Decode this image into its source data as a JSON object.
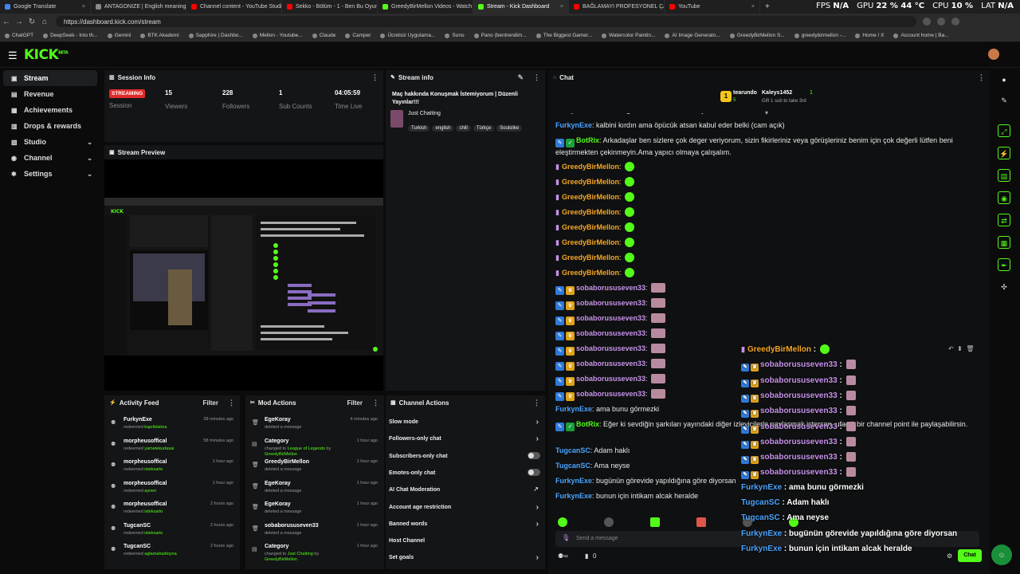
{
  "browser": {
    "tabs": [
      {
        "label": "Google Translate",
        "color": "#4285f4"
      },
      {
        "label": "ANTAGONIZE | English meaning",
        "color": "#888888"
      },
      {
        "label": "Channel content - YouTube Studio",
        "color": "#ff0000"
      },
      {
        "label": "Sekko - Bölüm - 1 - Ben Bu Oyun",
        "color": "#ff0000"
      },
      {
        "label": "GreedyBirMellon Videos - Watch",
        "color": "#53fc18"
      },
      {
        "label": "Stream - Kick Dashboard",
        "color": "#53fc18"
      },
      {
        "label": "BAĞLAMAYI PROFESYONEL ÇALM",
        "color": "#ff0000"
      },
      {
        "label": "YouTube",
        "color": "#ff0000"
      }
    ],
    "url": "https://dashboard.kick.com/stream",
    "bookmarks": [
      "ChatGPT",
      "DeepSeek - Into th...",
      "Gemini",
      "BTK Akademi",
      "Sapphire | Dashbo...",
      "Mellon - Youtube...",
      "Claude",
      "Camper",
      "Ücretsiz Uygulama...",
      "Suno",
      "Pano (bentrendim...",
      "The Biggest Gamer...",
      "Watercolor Paintin...",
      "AI Image Generato...",
      "GreedyBirMellon S...",
      "greedybirmellon -...",
      "Home / X",
      "Account home | Ba..."
    ],
    "sysmon": {
      "fps_label": "FPS",
      "fps_val": "N/A",
      "gpu_label": "GPU",
      "gpu_val": "22 % 44 °C",
      "cpu_label": "CPU",
      "cpu_val": "10 %",
      "lat_label": "LAT",
      "lat_val": "N/A"
    }
  },
  "app": {
    "logo": "KICK",
    "logo_sup": "BETA"
  },
  "sidebar": [
    {
      "label": "Stream",
      "icon": "video-icon",
      "glyph": "▣",
      "chev": ""
    },
    {
      "label": "Revenue",
      "icon": "revenue-icon",
      "glyph": "▤",
      "chev": ""
    },
    {
      "label": "Achievements",
      "icon": "trophy-icon",
      "glyph": "▦",
      "chev": ""
    },
    {
      "label": "Drops & rewards",
      "icon": "gift-icon",
      "glyph": "▥",
      "chev": ""
    },
    {
      "label": "Studio",
      "icon": "studio-icon",
      "glyph": "▧",
      "chev": "⌄"
    },
    {
      "label": "Channel",
      "icon": "channel-icon",
      "glyph": "◉",
      "chev": "⌄"
    },
    {
      "label": "Settings",
      "icon": "gear-icon",
      "glyph": "✱",
      "chev": "⌄"
    }
  ],
  "session": {
    "title": "Session Info",
    "badge": "STREAMING",
    "badge_label": "Session",
    "viewers": "15",
    "viewers_label": "Viewers",
    "followers": "228",
    "followers_label": "Followers",
    "subs": "1",
    "subs_label": "Sub Counts",
    "time": "04:05:59",
    "time_label": "Time Live"
  },
  "preview": {
    "title": "Stream Preview"
  },
  "stream_info": {
    "title": "Stream info",
    "stream_title": "Maç hakkında Konuşmak İstemiyorum | Düzenli Yayınlar!!!",
    "category": "Just Chatting",
    "tags": [
      "Turkish",
      "english",
      "chill",
      "Türkçe",
      "Soulslike"
    ]
  },
  "activity": {
    "title": "Activity Feed",
    "filter": "Filter",
    "items": [
      {
        "name": "FurkynExe",
        "verb": "redeemed",
        "item": "kapıtklatma",
        "time": "28 minutes ago"
      },
      {
        "name": "morpheusoffical",
        "verb": "redeemed",
        "item": "yametekudasai",
        "time": "58 minutes ago"
      },
      {
        "name": "morpheusoffical",
        "verb": "redeemed",
        "item": "isteksarkı",
        "time": "1 hour ago"
      },
      {
        "name": "morpheusoffical",
        "verb": "redeemed",
        "item": "aynen",
        "time": "1 hour ago"
      },
      {
        "name": "morpheusoffical",
        "verb": "redeemed",
        "item": "isteksarkı",
        "time": "2 hours ago"
      },
      {
        "name": "TugcanSC",
        "verb": "redeemed",
        "item": "isteksarkı",
        "time": "2 hours ago"
      },
      {
        "name": "TugcanSC",
        "verb": "redeemed",
        "item": "aglamahadioyna",
        "time": "2 hours ago"
      }
    ]
  },
  "mod": {
    "title": "Mod Actions",
    "filter": "Filter",
    "items": [
      {
        "name": "EgeKoray",
        "pre": "",
        "desc": "deleted a message",
        "mid": "",
        "by": "",
        "time": "4 minutes ago"
      },
      {
        "name": "Category",
        "pre": "changed to",
        "desc": "League of Legends",
        "mid": "by",
        "by": "GreedyBirMellon",
        "time": "1 hour ago"
      },
      {
        "name": "GreedyBirMellon",
        "pre": "",
        "desc": "deleted a message",
        "mid": "",
        "by": "",
        "time": "1 hour ago"
      },
      {
        "name": "EgeKoray",
        "pre": "",
        "desc": "deleted a message",
        "mid": "",
        "by": "",
        "time": "1 hour ago"
      },
      {
        "name": "EgeKoray",
        "pre": "",
        "desc": "deleted a message",
        "mid": "",
        "by": "",
        "time": "1 hour ago"
      },
      {
        "name": "sobaborususeven33",
        "pre": "",
        "desc": "deleted a message",
        "mid": "",
        "by": "",
        "time": "1 hour ago"
      },
      {
        "name": "Category",
        "pre": "changed to",
        "desc": "Just Chatting",
        "mid": "by",
        "by": "GreedyBirMellon",
        "time": "1 hour ago"
      }
    ]
  },
  "channel_actions": {
    "title": "Channel Actions",
    "items": [
      {
        "label": "Slow mode",
        "kind": "chev"
      },
      {
        "label": "Followers-only chat",
        "kind": "chev"
      },
      {
        "label": "Subscribers-only chat",
        "kind": "toggle"
      },
      {
        "label": "Emotes-only chat",
        "kind": "toggle"
      },
      {
        "label": "AI Chat Moderation",
        "kind": "ext"
      },
      {
        "label": "Account age restriction",
        "kind": "chev"
      },
      {
        "label": "Banned words",
        "kind": "chev"
      },
      {
        "label": "Host Channel",
        "kind": "none"
      },
      {
        "label": "Set goals",
        "kind": "chev"
      }
    ]
  },
  "chat": {
    "title": "Chat",
    "pinned": {
      "user1": "tearundo",
      "count1": "1",
      "user2": "Kaleys1452",
      "count2": "1",
      "sub_count": "5",
      "gift": "Gift 1 sub to take 3rd"
    },
    "messages": [
      {
        "user": "FurkynExe",
        "color": "#4aa3ff",
        "text": "Adam ne güzel tatil tatil anı anlatıyordu",
        "badges": "",
        "emote": ""
      },
      {
        "user": "FurkynExe",
        "color": "#4aa3ff",
        "text": "kalbini kırdın ama öpücük atsan kabul eder belki (cam açık)",
        "badges": "",
        "emote": ""
      },
      {
        "user": "BotRix",
        "color": "#53fc18",
        "text": "Arkadaşlar ben sizlere çok deger veriyorum, sizin fikirleriniz veya görüşleriniz benim için çok değerli lütfen beni eleştirmekten çekinmeyin.Ama yapıcı olmaya çalışalım.",
        "badges": "bot",
        "emote": ""
      },
      {
        "user": "GreedyBirMellon",
        "color": "#f5a623",
        "text": "",
        "badges": "mic",
        "emote": "green"
      },
      {
        "user": "GreedyBirMellon",
        "color": "#f5a623",
        "text": "",
        "badges": "mic",
        "emote": "green"
      },
      {
        "user": "GreedyBirMellon",
        "color": "#f5a623",
        "text": "",
        "badges": "mic",
        "emote": "green"
      },
      {
        "user": "GreedyBirMellon",
        "color": "#f5a623",
        "text": "",
        "badges": "mic",
        "emote": "green"
      },
      {
        "user": "GreedyBirMellon",
        "color": "#f5a623",
        "text": "",
        "badges": "mic",
        "emote": "green"
      },
      {
        "user": "GreedyBirMellon",
        "color": "#f5a623",
        "text": "",
        "badges": "mic",
        "emote": "green"
      },
      {
        "user": "GreedyBirMellon",
        "color": "#f5a623",
        "text": "",
        "badges": "mic",
        "emote": "green"
      },
      {
        "user": "GreedyBirMellon",
        "color": "#f5a623",
        "text": "",
        "badges": "mic",
        "emote": "green"
      },
      {
        "user": "sobaborususeven33",
        "color": "#c792ea",
        "text": "",
        "badges": "subs",
        "emote": "pink"
      },
      {
        "user": "sobaborususeven33",
        "color": "#c792ea",
        "text": "",
        "badges": "subs",
        "emote": "pink"
      },
      {
        "user": "sobaborususeven33",
        "color": "#c792ea",
        "text": "",
        "badges": "subs",
        "emote": "pink"
      },
      {
        "user": "sobaborususeven33",
        "color": "#c792ea",
        "text": "",
        "badges": "subs",
        "emote": "pink"
      },
      {
        "user": "sobaborususeven33",
        "color": "#c792ea",
        "text": "",
        "badges": "subs",
        "emote": "pink"
      },
      {
        "user": "sobaborususeven33",
        "color": "#c792ea",
        "text": "",
        "badges": "subs",
        "emote": "pink"
      },
      {
        "user": "sobaborususeven33",
        "color": "#c792ea",
        "text": "",
        "badges": "subs",
        "emote": "pink"
      },
      {
        "user": "sobaborususeven33",
        "color": "#c792ea",
        "text": "",
        "badges": "subs",
        "emote": "pink"
      },
      {
        "user": "FurkynExe",
        "color": "#4aa3ff",
        "text": "ama bunu görmezki",
        "badges": "",
        "emote": ""
      },
      {
        "user": "BotRix",
        "color": "#53fc18",
        "text": "Eğer ki sevdiğin şarkıları yayındaki diğer izleyicilerle paylaşmak istersen, ufacık bir channel point ile paylaşabilirsin.",
        "badges": "bot",
        "emote": ""
      },
      {
        "user": "TugcanSC",
        "color": "#4aa3ff",
        "text": "Adam haklı",
        "badges": "",
        "emote": ""
      },
      {
        "user": "TugcanSC",
        "color": "#4aa3ff",
        "text": "Ama neyse",
        "badges": "",
        "emote": ""
      },
      {
        "user": "FurkynExe",
        "color": "#4aa3ff",
        "text": "bugünün görevide yapıldığına göre diyorsan",
        "badges": "",
        "emote": ""
      },
      {
        "user": "FurkynExe",
        "color": "#4aa3ff",
        "text": "bunun için intikam alcak heralde",
        "badges": "",
        "emote": ""
      }
    ],
    "input_placeholder": "Send a message",
    "points": "0",
    "send_label": "Chat"
  },
  "overlay": [
    {
      "user": "GreedyBirMellon",
      "color": "#f5a623",
      "text": "",
      "badges": "mic",
      "emote": "green"
    },
    {
      "user": "sobaborususeven33",
      "color": "#c792ea",
      "text": "",
      "badges": "subs",
      "emote": "pink"
    },
    {
      "user": "sobaborususeven33",
      "color": "#c792ea",
      "text": "",
      "badges": "subs",
      "emote": "pink"
    },
    {
      "user": "sobaborususeven33",
      "color": "#c792ea",
      "text": "",
      "badges": "subs",
      "emote": "pink"
    },
    {
      "user": "sobaborususeven33",
      "color": "#c792ea",
      "text": "",
      "badges": "subs",
      "emote": "pink"
    },
    {
      "user": "sobaborususeven33",
      "color": "#c792ea",
      "text": "",
      "badges": "subs",
      "emote": "pink"
    },
    {
      "user": "sobaborususeven33",
      "color": "#c792ea",
      "text": "",
      "badges": "subs",
      "emote": "pink"
    },
    {
      "user": "sobaborususeven33",
      "color": "#c792ea",
      "text": "",
      "badges": "subs",
      "emote": "pink"
    },
    {
      "user": "sobaborususeven33",
      "color": "#c792ea",
      "text": "",
      "badges": "subs",
      "emote": "pink"
    },
    {
      "user": "FurkynExe",
      "color": "#4aa3ff",
      "text": "ama bunu görmezki",
      "badges": "",
      "emote": ""
    },
    {
      "user": "TugcanSC",
      "color": "#4aa3ff",
      "text": "Adam haklı",
      "badges": "",
      "emote": ""
    },
    {
      "user": "TugcanSC",
      "color": "#4aa3ff",
      "text": "Ama neyse",
      "badges": "",
      "emote": ""
    },
    {
      "user": "FurkynExe",
      "color": "#4aa3ff",
      "text": "bugünün görevide yapıldığına göre diyorsan",
      "badges": "",
      "emote": ""
    },
    {
      "user": "FurkynExe",
      "color": "#4aa3ff",
      "text": "bunun için intikam alcak heralde",
      "badges": "",
      "emote": ""
    }
  ],
  "colors": {
    "accent": "#53fc18",
    "live": "#e02b2b",
    "panel": "#141517"
  }
}
